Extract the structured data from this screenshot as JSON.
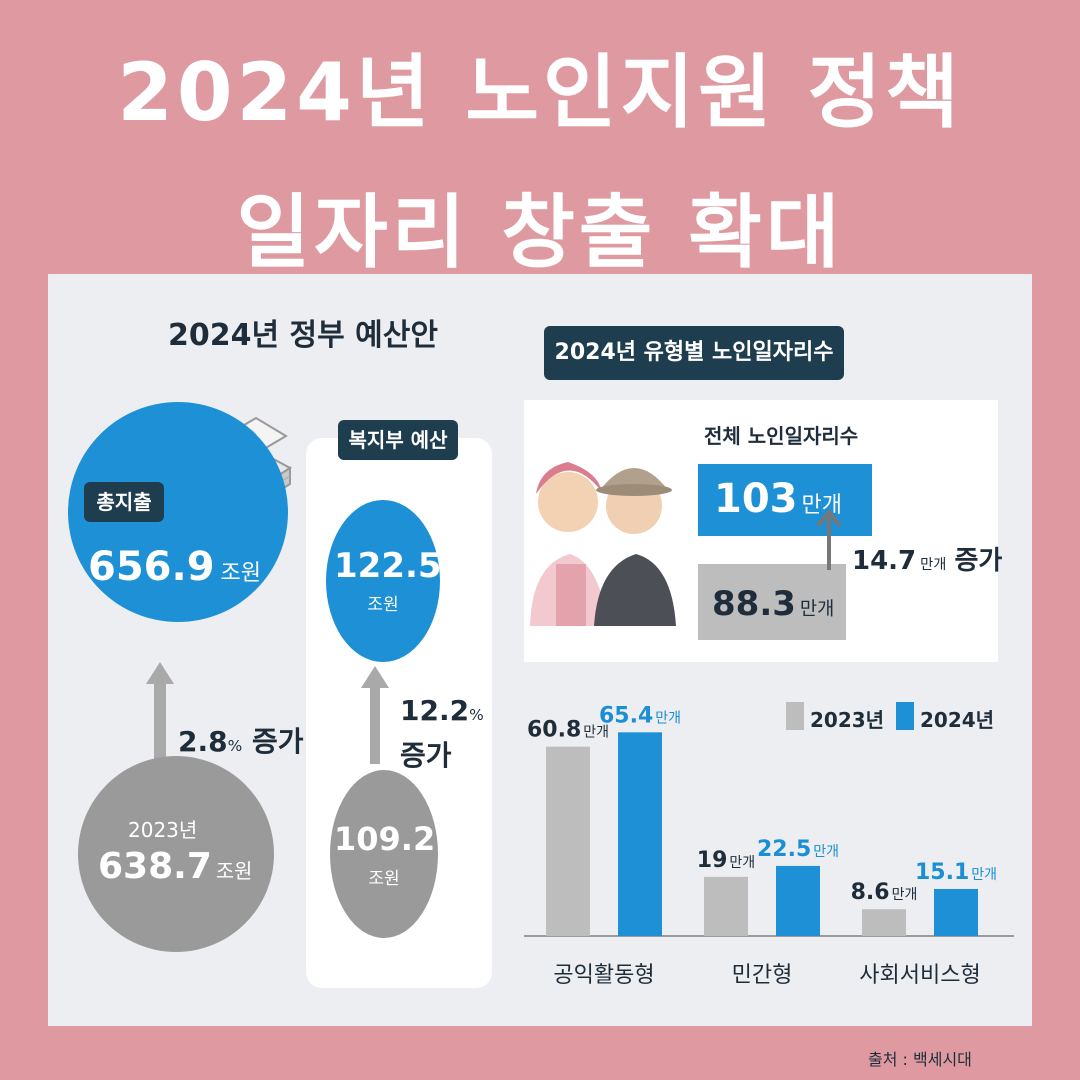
{
  "headline": {
    "line1": "2024년 노인지원 정책",
    "line2": "일자리 창출 확대"
  },
  "source": "출처 : 백세시대",
  "budget": {
    "title": "2024년 정부 예산안",
    "total_label": "총지출",
    "total_2024": "656.9",
    "total_2023_year": "2023년",
    "total_2023": "638.7",
    "unit": "조원",
    "increase_value": "2.8",
    "increase_unit": "%",
    "increase_word": "증가",
    "welfare_label": "복지부 예산",
    "welfare_2024": "122.5",
    "welfare_2023": "109.2",
    "welfare_increase_value": "12.2",
    "welfare_increase_unit": "%",
    "welfare_increase_word": "증가"
  },
  "jobs": {
    "title": "2024년 유형별 노인일자리수",
    "total_label": "전체 노인일자리수",
    "total_2024": "103",
    "total_2023": "88.3",
    "increase_value": "14.7",
    "increase_word": "증가",
    "unit": "만개"
  },
  "colors": {
    "bg": "#de9aa0",
    "blue": "#1d90d6",
    "gray": "#bdbdbd",
    "navy": "#1e3d4f"
  },
  "chart_data": [
    {
      "type": "bar",
      "title": "2024년 정부 예산안",
      "categories": [
        "총지출",
        "복지부 예산"
      ],
      "series": [
        {
          "name": "2023년",
          "values": [
            638.7,
            109.2
          ]
        },
        {
          "name": "2024년",
          "values": [
            656.9,
            122.5
          ]
        }
      ],
      "unit": "조원"
    },
    {
      "type": "bar",
      "title": "전체 노인일자리수",
      "categories": [
        "2023년",
        "2024년"
      ],
      "values": [
        88.3,
        103
      ],
      "unit": "만개"
    },
    {
      "type": "bar",
      "title": "2024년 유형별 노인일자리수",
      "categories": [
        "공익활동형",
        "민간형",
        "사회서비스형"
      ],
      "series": [
        {
          "name": "2023년",
          "values": [
            60.8,
            19,
            8.6
          ],
          "labels": [
            "60.8",
            "19",
            "8.6"
          ],
          "color": "#bdbdbd"
        },
        {
          "name": "2024년",
          "values": [
            65.4,
            22.5,
            15.1
          ],
          "labels": [
            "65.4",
            "22.5",
            "15.1"
          ],
          "color": "#1d90d6"
        }
      ],
      "unit": "만개",
      "legend": "top-right",
      "ylim": [
        0,
        70
      ]
    }
  ]
}
